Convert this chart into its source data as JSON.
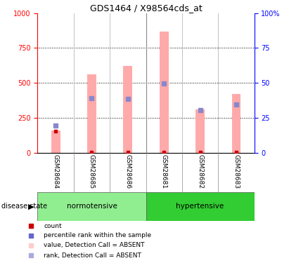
{
  "title": "GDS1464 / X98564cds_at",
  "samples": [
    "GSM28684",
    "GSM28685",
    "GSM28686",
    "GSM28681",
    "GSM28682",
    "GSM28683"
  ],
  "groups": [
    "normotensive",
    "hypertensive"
  ],
  "normotensive_color": "#90EE90",
  "hypertensive_color": "#32CD32",
  "pink_bar_values": [
    160,
    560,
    620,
    870,
    310,
    420
  ],
  "blue_marker_values": [
    19.5,
    39,
    38.5,
    49.5,
    30.5,
    34.5
  ],
  "red_dot_values": [
    15.5,
    0.5,
    0.5,
    0.5,
    0.5,
    0.5
  ],
  "ylim_left": [
    0,
    1000
  ],
  "ylim_right": [
    0,
    100
  ],
  "yticks_left": [
    0,
    250,
    500,
    750,
    1000
  ],
  "yticks_right": [
    0,
    25,
    50,
    75,
    100
  ],
  "pink_color": "#FFAAAA",
  "blue_color": "#6666CC",
  "blue_marker_color": "#8888CC",
  "red_color": "#CC0000",
  "grid_color": "black",
  "bg_color": "white",
  "plot_bg": "white",
  "sample_bg": "#CCCCCC",
  "label_count": "count",
  "label_percentile": "percentile rank within the sample",
  "label_value_absent": "value, Detection Call = ABSENT",
  "label_rank_absent": "rank, Detection Call = ABSENT",
  "disease_state_label": "disease state"
}
